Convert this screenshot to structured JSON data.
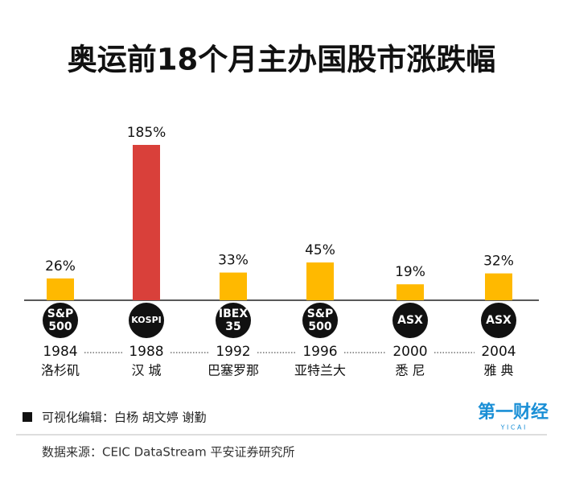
{
  "chart_data": {
    "type": "bar",
    "title": "奥运前18个月主办国股市涨跌幅",
    "categories": [
      "1984",
      "1988",
      "1992",
      "1996",
      "2000",
      "2004"
    ],
    "cities": [
      "洛杉矶",
      "汉 城",
      "巴塞罗那",
      "亚特兰大",
      "悉 尼",
      "雅 典"
    ],
    "indices": [
      [
        "S&P",
        "500"
      ],
      [
        "KOSPI"
      ],
      [
        "IBEX",
        "35"
      ],
      [
        "S&P",
        "500"
      ],
      [
        "ASX"
      ],
      [
        "ASX"
      ]
    ],
    "values": [
      26,
      185,
      33,
      45,
      19,
      32
    ],
    "value_labels": [
      "26%",
      "185%",
      "33%",
      "45%",
      "19%",
      "32%"
    ],
    "colors": [
      "#ffb900",
      "#d9403a",
      "#ffb900",
      "#ffb900",
      "#ffb900",
      "#ffb900"
    ]
  },
  "footer": {
    "editors": "可视化编辑：白杨  胡文婷  谢勤",
    "source": "数据来源：CEIC  DataStream  平安证券研究所",
    "logo": "第一财经",
    "logo_sub": "Y I C A I"
  }
}
